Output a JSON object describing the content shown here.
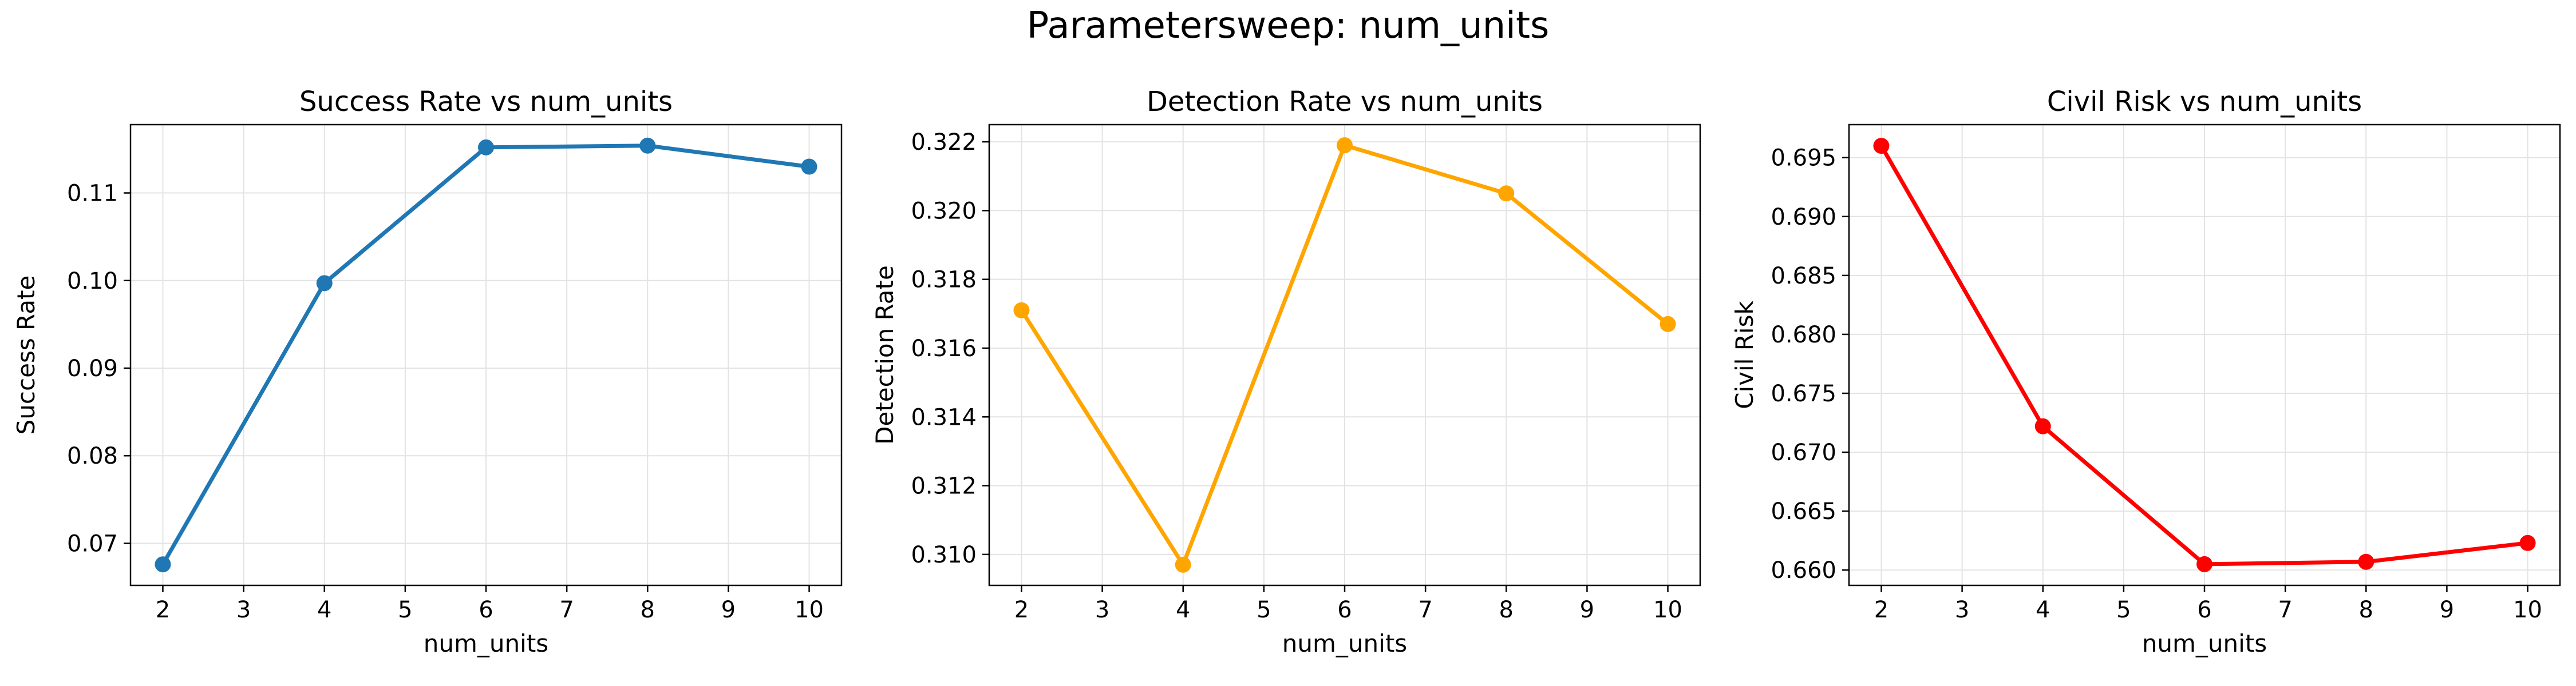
{
  "figure": {
    "suptitle": "Parametersweep: num_units"
  },
  "chart_data": [
    {
      "type": "line",
      "title": "Success Rate vs num_units",
      "xlabel": "num_units",
      "ylabel": "Success Rate",
      "x": [
        2,
        4,
        6,
        8,
        10
      ],
      "series": [
        {
          "values": [
            0.0676,
            0.0997,
            0.1152,
            0.1154,
            0.113
          ],
          "color": "#1f77b4"
        }
      ],
      "xlim": [
        1.6,
        10.4
      ],
      "ylim": [
        0.0652,
        0.1178
      ],
      "xticks": [
        2,
        3,
        4,
        5,
        6,
        7,
        8,
        9,
        10
      ],
      "xtick_labels": [
        "2",
        "3",
        "4",
        "5",
        "6",
        "7",
        "8",
        "9",
        "10"
      ],
      "yticks": [
        0.07,
        0.08,
        0.09,
        0.1,
        0.11
      ],
      "ytick_labels": [
        "0.07",
        "0.08",
        "0.09",
        "0.10",
        "0.11"
      ],
      "grid": true
    },
    {
      "type": "line",
      "title": "Detection Rate vs num_units",
      "xlabel": "num_units",
      "ylabel": "Detection Rate",
      "x": [
        2,
        4,
        6,
        8,
        10
      ],
      "series": [
        {
          "values": [
            0.3171,
            0.3097,
            0.3219,
            0.3205,
            0.3167
          ],
          "color": "#ffa500"
        }
      ],
      "xlim": [
        1.6,
        10.4
      ],
      "ylim": [
        0.3091,
        0.3225
      ],
      "xticks": [
        2,
        3,
        4,
        5,
        6,
        7,
        8,
        9,
        10
      ],
      "xtick_labels": [
        "2",
        "3",
        "4",
        "5",
        "6",
        "7",
        "8",
        "9",
        "10"
      ],
      "yticks": [
        0.31,
        0.312,
        0.314,
        0.316,
        0.318,
        0.32,
        0.322
      ],
      "ytick_labels": [
        "0.310",
        "0.312",
        "0.314",
        "0.316",
        "0.318",
        "0.320",
        "0.322"
      ],
      "grid": true
    },
    {
      "type": "line",
      "title": "Civil Risk vs num_units",
      "xlabel": "num_units",
      "ylabel": "Civil Risk",
      "x": [
        2,
        4,
        6,
        8,
        10
      ],
      "series": [
        {
          "values": [
            0.696,
            0.6722,
            0.6605,
            0.6607,
            0.6623
          ],
          "color": "#ff0000"
        }
      ],
      "xlim": [
        1.6,
        10.4
      ],
      "ylim": [
        0.6587,
        0.6978
      ],
      "xticks": [
        2,
        3,
        4,
        5,
        6,
        7,
        8,
        9,
        10
      ],
      "xtick_labels": [
        "2",
        "3",
        "4",
        "5",
        "6",
        "7",
        "8",
        "9",
        "10"
      ],
      "yticks": [
        0.66,
        0.665,
        0.67,
        0.675,
        0.68,
        0.685,
        0.69,
        0.695
      ],
      "ytick_labels": [
        "0.660",
        "0.665",
        "0.670",
        "0.675",
        "0.680",
        "0.685",
        "0.690",
        "0.695"
      ],
      "grid": true
    }
  ]
}
